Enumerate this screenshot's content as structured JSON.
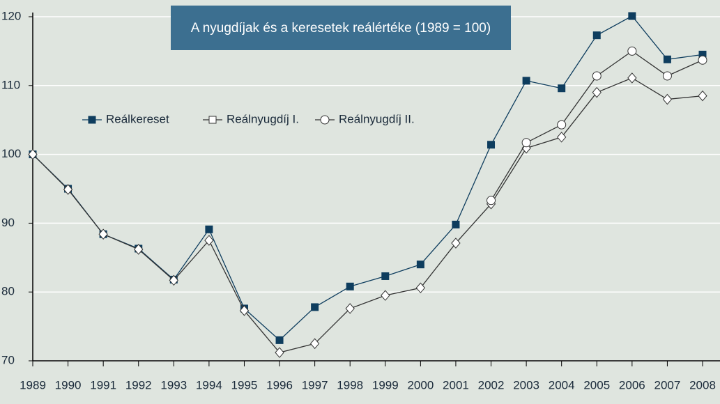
{
  "chart_data": {
    "type": "line",
    "title": "A nyugdíjak és a keresetek reálértéke (1989 = 100)",
    "categories": [
      "1989",
      "1990",
      "1991",
      "1992",
      "1993",
      "1994",
      "1995",
      "1996",
      "1997",
      "1998",
      "1999",
      "2000",
      "2001",
      "2002",
      "2003",
      "2004",
      "2005",
      "2006",
      "2007",
      "2008"
    ],
    "series": [
      {
        "name": "Reálkereset",
        "color": "#0e3d5e",
        "marker": "square",
        "values": [
          100,
          95,
          88.4,
          86.3,
          81.8,
          89.1,
          77.6,
          73,
          77.8,
          80.8,
          82.3,
          84,
          89.8,
          101.4,
          110.7,
          109.6,
          117.3,
          120.1,
          113.8,
          114.5
        ]
      },
      {
        "name": "Reálnyugdíj I.",
        "color": "#333333",
        "marker": "diamond",
        "values": [
          100,
          94.9,
          88.4,
          86.2,
          81.7,
          87.5,
          77.3,
          71.2,
          72.5,
          77.6,
          79.5,
          80.6,
          87.1,
          92.8,
          100.9,
          102.5,
          109,
          111.1,
          108,
          108.5
        ]
      },
      {
        "name": "Reálnyugdíj II.",
        "color": "#333333",
        "marker": "circle",
        "values": [
          null,
          null,
          null,
          null,
          null,
          null,
          null,
          null,
          null,
          null,
          null,
          null,
          null,
          93.3,
          101.7,
          104.3,
          111.4,
          115,
          111.4,
          113.7
        ]
      }
    ],
    "ylim": [
      70,
      120
    ],
    "yticks": [
      70,
      80,
      90,
      100,
      110,
      120
    ],
    "grid": true
  }
}
